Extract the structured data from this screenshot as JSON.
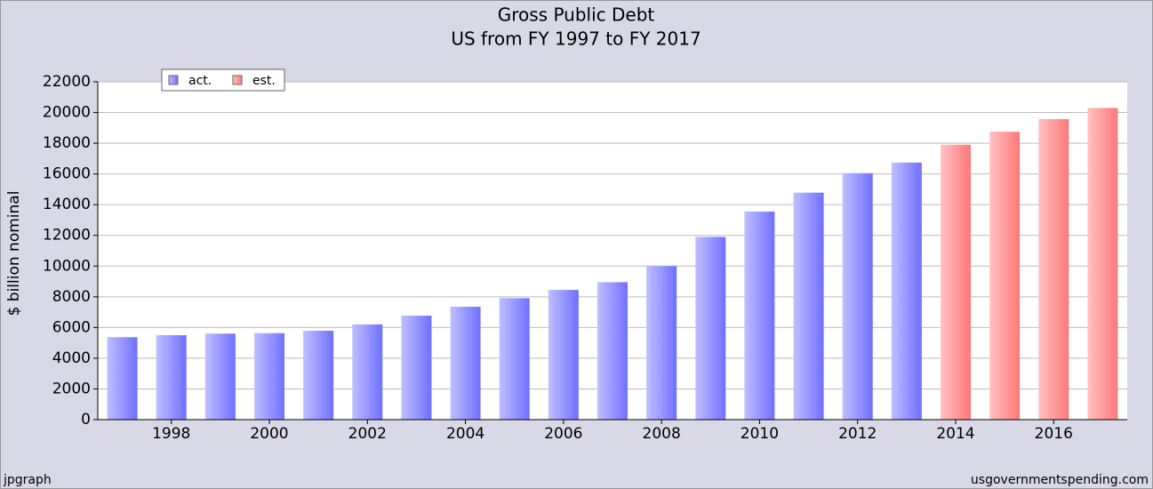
{
  "chart_data": {
    "type": "bar",
    "title": "Gross Public Debt",
    "subtitle": "US from FY 1997 to FY 2017",
    "y_label": "$ billion nominal",
    "categories": [
      null,
      "1998",
      null,
      "2000",
      null,
      "2002",
      null,
      "2004",
      null,
      "2006",
      null,
      "2008",
      null,
      "2010",
      null,
      "2012",
      null,
      "2014",
      null,
      "2016",
      null
    ],
    "series": [
      {
        "name": "act.",
        "color": "#7070ff",
        "values": [
          5370,
          5500,
          5600,
          5630,
          5790,
          6200,
          6770,
          7350,
          7910,
          8450,
          8950,
          10000,
          11900,
          13550,
          14780,
          16050,
          16740,
          null,
          null,
          null,
          null
        ]
      },
      {
        "name": "est.",
        "color": "#ff7878",
        "values": [
          null,
          null,
          null,
          null,
          null,
          null,
          null,
          null,
          null,
          null,
          null,
          null,
          null,
          null,
          null,
          null,
          null,
          17900,
          18750,
          19570,
          20300
        ]
      }
    ],
    "ylim": [
      0,
      22000
    ],
    "yticks": [
      0,
      2000,
      4000,
      6000,
      8000,
      10000,
      12000,
      14000,
      16000,
      18000,
      20000,
      22000
    ],
    "grid": true,
    "footer_left": "jpgraph",
    "footer_right": "usgovernmentspending.com"
  }
}
